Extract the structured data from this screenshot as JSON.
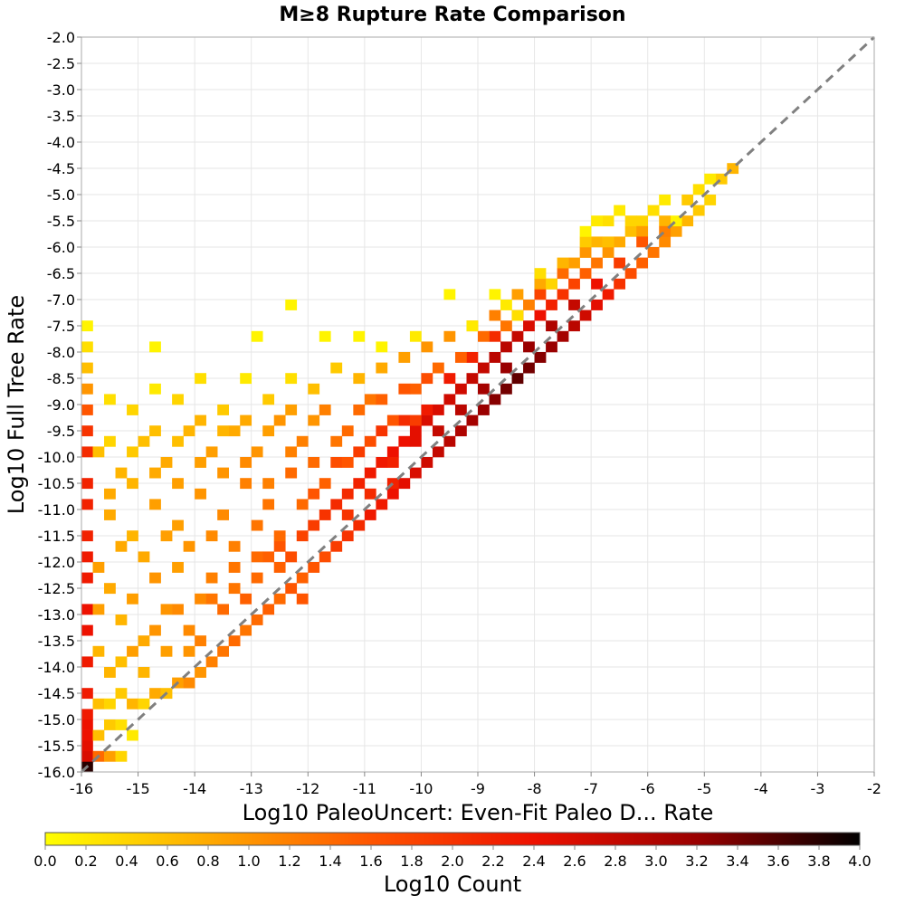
{
  "chart_data": {
    "type": "heatmap",
    "title": "M≥8 Rupture Rate Comparison",
    "xlabel": "Log10 PaleoUncert: Even-Fit Paleo D... Rate",
    "ylabel": "Log10 Full Tree Rate",
    "xlim": [
      -16,
      -2
    ],
    "ylim": [
      -16,
      -2
    ],
    "x_ticks": [
      -16,
      -15,
      -14,
      -13,
      -12,
      -11,
      -10,
      -9,
      -8,
      -7,
      -6,
      -5,
      -4,
      -3,
      -2
    ],
    "x_tick_labels": [
      "-16",
      "-15",
      "-14",
      "-13",
      "-12",
      "-11",
      "-10",
      "-9",
      "-8",
      "-7",
      "-6",
      "-5",
      "-4",
      "-3",
      "-2"
    ],
    "y_ticks": [
      -16,
      -15.5,
      -15,
      -14.5,
      -14,
      -13.5,
      -13,
      -12.5,
      -12,
      -11.5,
      -11,
      -10.5,
      -10,
      -9.5,
      -9,
      -8.5,
      -8,
      -7.5,
      -7,
      -6.5,
      -6,
      -5.5,
      -5,
      -4.5,
      -4,
      -3.5,
      -3,
      -2.5,
      -2
    ],
    "y_tick_labels": [
      "-16.0",
      "-15.5",
      "-15.0",
      "-14.5",
      "-14.0",
      "-13.5",
      "-13.0",
      "-12.5",
      "-12.0",
      "-11.5",
      "-11.0",
      "-10.5",
      "-10.0",
      "-9.5",
      "-9.0",
      "-8.5",
      "-8.0",
      "-7.5",
      "-7.0",
      "-6.5",
      "-6.0",
      "-5.5",
      "-5.0",
      "-4.5",
      "-4.0",
      "-3.5",
      "-3.0",
      "-2.5",
      "-2.0"
    ],
    "grid": true,
    "bin_size": 0.2,
    "reference_line": {
      "from": [
        -16,
        -16
      ],
      "to": [
        -2,
        -2
      ],
      "style": "dashed",
      "color": "#808080"
    },
    "colorbar": {
      "label": "Log10 Count",
      "range": [
        0,
        4
      ],
      "ticks": [
        0.0,
        0.2,
        0.4,
        0.6,
        0.8,
        1.0,
        1.2,
        1.4,
        1.6,
        1.8,
        2.0,
        2.2,
        2.4,
        2.6,
        2.8,
        3.0,
        3.2,
        3.4,
        3.6,
        3.8,
        4.0
      ],
      "tick_labels": [
        "0.0",
        "0.2",
        "0.4",
        "0.6",
        "0.8",
        "1.0",
        "1.2",
        "1.4",
        "1.6",
        "1.8",
        "2.0",
        "2.2",
        "2.4",
        "2.6",
        "2.8",
        "3.0",
        "3.2",
        "3.4",
        "3.6",
        "3.8",
        "4.0"
      ],
      "colormap": [
        "#ffff00",
        "#ffaa00",
        "#ff5500",
        "#ee1100",
        "#9a0000",
        "#000000"
      ]
    },
    "cells": [
      [
        -16,
        -16,
        3.8
      ],
      [
        -16,
        -15.8,
        2.6
      ],
      [
        -16,
        -15.6,
        2.5
      ],
      [
        -16,
        -15.4,
        2.4
      ],
      [
        -16,
        -15.2,
        2.4
      ],
      [
        -16,
        -15,
        2.3
      ],
      [
        -16,
        -14.6,
        2.3
      ],
      [
        -16,
        -14,
        2.3
      ],
      [
        -16,
        -13.4,
        2.4
      ],
      [
        -16,
        -13,
        2.4
      ],
      [
        -16,
        -12.4,
        2.3
      ],
      [
        -16,
        -12,
        2.3
      ],
      [
        -16,
        -11.6,
        2.2
      ],
      [
        -16,
        -11,
        2.2
      ],
      [
        -16,
        -10.6,
        2.2
      ],
      [
        -16,
        -10,
        2.1
      ],
      [
        -16,
        -9.6,
        2.0
      ],
      [
        -16,
        -9.2,
        1.6
      ],
      [
        -16,
        -8.8,
        1.0
      ],
      [
        -16,
        -8.4,
        0.6
      ],
      [
        -16,
        -8,
        0.3
      ],
      [
        -16,
        -7.6,
        0.1
      ],
      [
        -15.8,
        -15.8,
        1.4
      ],
      [
        -15.6,
        -15.8,
        0.9
      ],
      [
        -15.4,
        -15.8,
        0.4
      ],
      [
        -15.8,
        -15.4,
        0.6
      ],
      [
        -15.6,
        -15.2,
        0.5
      ],
      [
        -15.4,
        -15.2,
        0.3
      ],
      [
        -15.2,
        -15.4,
        0.2
      ],
      [
        -15.8,
        -14.8,
        0.6
      ],
      [
        -15.6,
        -14.8,
        0.4
      ],
      [
        -15.4,
        -14.6,
        0.5
      ],
      [
        -15.2,
        -14.8,
        0.7
      ],
      [
        -15,
        -14.8,
        0.4
      ],
      [
        -14.8,
        -14.6,
        0.8
      ],
      [
        -14.6,
        -14.6,
        0.6
      ],
      [
        -14.4,
        -14.4,
        0.9
      ],
      [
        -14.2,
        -14.4,
        1.1
      ],
      [
        -14,
        -14.2,
        1.0
      ],
      [
        -13.8,
        -14,
        1.2
      ],
      [
        -13.6,
        -13.8,
        1.3
      ],
      [
        -13.4,
        -13.6,
        1.4
      ],
      [
        -13.2,
        -13.4,
        1.3
      ],
      [
        -13,
        -13.2,
        1.4
      ],
      [
        -12.8,
        -13,
        1.5
      ],
      [
        -12.6,
        -12.8,
        1.4
      ],
      [
        -12.4,
        -12.6,
        1.6
      ],
      [
        -12.2,
        -12.4,
        1.5
      ],
      [
        -12,
        -12.2,
        1.6
      ],
      [
        -11.8,
        -12,
        1.7
      ],
      [
        -11.6,
        -11.8,
        1.9
      ],
      [
        -11.4,
        -11.6,
        2.0
      ],
      [
        -11.2,
        -11.4,
        2.1
      ],
      [
        -11,
        -11.2,
        2.3
      ],
      [
        -10.8,
        -11,
        2.3
      ],
      [
        -10.6,
        -10.8,
        2.4
      ],
      [
        -10.4,
        -10.6,
        2.5
      ],
      [
        -10.2,
        -10.4,
        2.6
      ],
      [
        -10,
        -10.2,
        2.7
      ],
      [
        -9.8,
        -10,
        2.8
      ],
      [
        -9.6,
        -9.8,
        2.9
      ],
      [
        -9.4,
        -9.6,
        3.0
      ],
      [
        -9.2,
        -9.4,
        3.1
      ],
      [
        -9,
        -9.2,
        3.2
      ],
      [
        -8.8,
        -9,
        3.3
      ],
      [
        -8.6,
        -8.8,
        3.4
      ],
      [
        -8.4,
        -8.6,
        3.5
      ],
      [
        -8.2,
        -8.4,
        3.4
      ],
      [
        -8,
        -8.2,
        3.3
      ],
      [
        -7.8,
        -8,
        3.2
      ],
      [
        -7.6,
        -7.8,
        3.1
      ],
      [
        -7.4,
        -7.6,
        2.9
      ],
      [
        -7.2,
        -7.4,
        2.7
      ],
      [
        -7,
        -7.2,
        2.5
      ],
      [
        -6.8,
        -7,
        2.3
      ],
      [
        -6.6,
        -6.8,
        2.0
      ],
      [
        -6.4,
        -6.6,
        1.7
      ],
      [
        -6.2,
        -6.4,
        1.5
      ],
      [
        -6,
        -6.2,
        1.3
      ],
      [
        -5.8,
        -6,
        1.1
      ],
      [
        -5.6,
        -5.8,
        0.9
      ],
      [
        -5.4,
        -5.6,
        0.7
      ],
      [
        -5.2,
        -5.4,
        0.5
      ],
      [
        -5,
        -5.2,
        0.4
      ],
      [
        -4.8,
        -4.8,
        0.5
      ],
      [
        -4.6,
        -4.6,
        0.7
      ],
      [
        -15.8,
        -13,
        0.9
      ],
      [
        -15.6,
        -12.6,
        0.8
      ],
      [
        -15.4,
        -13.2,
        0.7
      ],
      [
        -15.2,
        -12.8,
        0.9
      ],
      [
        -15,
        -13.6,
        0.8
      ],
      [
        -14.8,
        -12.4,
        1.0
      ],
      [
        -14.6,
        -13,
        1.0
      ],
      [
        -14.4,
        -12.2,
        0.9
      ],
      [
        -14.2,
        -13.4,
        1.1
      ],
      [
        -14,
        -12.8,
        1.1
      ],
      [
        -13.8,
        -12.4,
        1.2
      ],
      [
        -13.6,
        -13,
        1.4
      ],
      [
        -13.4,
        -12.2,
        1.3
      ],
      [
        -13.2,
        -12.8,
        1.5
      ],
      [
        -13,
        -12.4,
        1.4
      ],
      [
        -12.8,
        -12,
        1.5
      ],
      [
        -12.6,
        -11.8,
        1.6
      ],
      [
        -12.4,
        -12,
        1.7
      ],
      [
        -12.2,
        -11.6,
        1.8
      ],
      [
        -12,
        -11.4,
        1.9
      ],
      [
        -11.8,
        -11.2,
        2.0
      ],
      [
        -11.6,
        -11,
        2.1
      ],
      [
        -11.4,
        -10.8,
        2.1
      ],
      [
        -11.2,
        -10.6,
        2.2
      ],
      [
        -11,
        -10.4,
        2.3
      ],
      [
        -10.8,
        -10.2,
        2.3
      ],
      [
        -10.6,
        -10,
        2.4
      ],
      [
        -10.4,
        -9.8,
        2.4
      ],
      [
        -10.2,
        -9.6,
        2.5
      ],
      [
        -10,
        -9.4,
        2.6
      ],
      [
        -9.8,
        -9.2,
        2.6
      ],
      [
        -9.6,
        -9,
        2.7
      ],
      [
        -9.4,
        -8.8,
        2.7
      ],
      [
        -9.2,
        -8.6,
        2.8
      ],
      [
        -9,
        -8.4,
        2.8
      ],
      [
        -8.8,
        -8.2,
        2.9
      ],
      [
        -8.6,
        -8,
        2.9
      ],
      [
        -8.4,
        -7.8,
        2.8
      ],
      [
        -8.2,
        -7.6,
        2.6
      ],
      [
        -8,
        -7.4,
        2.4
      ],
      [
        -7.8,
        -7.2,
        2.2
      ],
      [
        -7.6,
        -7,
        2.0
      ],
      [
        -7.4,
        -6.8,
        1.8
      ],
      [
        -7.2,
        -6.6,
        1.5
      ],
      [
        -7,
        -6.4,
        1.3
      ],
      [
        -6.8,
        -6.2,
        1.0
      ],
      [
        -6.6,
        -6,
        0.8
      ],
      [
        -6.4,
        -5.8,
        0.6
      ],
      [
        -6.2,
        -5.6,
        0.4
      ],
      [
        -15.6,
        -11.2,
        0.8
      ],
      [
        -15.2,
        -11.6,
        0.7
      ],
      [
        -14.8,
        -11,
        0.9
      ],
      [
        -14.4,
        -11.4,
        0.9
      ],
      [
        -14,
        -10.8,
        1.0
      ],
      [
        -13.6,
        -11.2,
        1.1
      ],
      [
        -13.2,
        -10.6,
        1.2
      ],
      [
        -12.8,
        -11,
        1.3
      ],
      [
        -12.4,
        -10.4,
        1.4
      ],
      [
        -12,
        -10.8,
        1.6
      ],
      [
        -11.6,
        -10.2,
        1.7
      ],
      [
        -11.2,
        -10,
        1.9
      ],
      [
        -10.8,
        -9.6,
        2.0
      ],
      [
        -10.4,
        -9.4,
        2.1
      ],
      [
        -10,
        -9.2,
        2.3
      ],
      [
        -9.6,
        -8.6,
        2.3
      ],
      [
        -9.2,
        -8.2,
        2.2
      ],
      [
        -8.8,
        -7.8,
        2.1
      ],
      [
        -8.4,
        -7.4,
        2.0
      ],
      [
        -8,
        -7,
        1.8
      ],
      [
        -7.6,
        -6.6,
        1.4
      ],
      [
        -7.2,
        -6.2,
        1.0
      ],
      [
        -15.8,
        -10,
        0.6
      ],
      [
        -15.4,
        -10.4,
        0.7
      ],
      [
        -15,
        -9.8,
        0.6
      ],
      [
        -14.6,
        -10.2,
        0.8
      ],
      [
        -14.2,
        -9.6,
        0.7
      ],
      [
        -13.8,
        -10,
        0.9
      ],
      [
        -13.4,
        -9.6,
        0.8
      ],
      [
        -13,
        -10,
        1.0
      ],
      [
        -12.6,
        -9.4,
        1.0
      ],
      [
        -12.2,
        -9.8,
        1.2
      ],
      [
        -11.8,
        -9.2,
        1.2
      ],
      [
        -11.4,
        -9.6,
        1.4
      ],
      [
        -11,
        -9,
        1.3
      ],
      [
        -10.6,
        -9.4,
        1.6
      ],
      [
        -10.2,
        -8.8,
        1.5
      ],
      [
        -9.8,
        -8.4,
        1.4
      ],
      [
        -9.4,
        -8.2,
        1.5
      ],
      [
        -9,
        -7.8,
        1.4
      ],
      [
        -8.6,
        -7.6,
        1.3
      ],
      [
        -8.2,
        -7.2,
        1.2
      ],
      [
        -7.8,
        -6.8,
        1.1
      ],
      [
        -7.4,
        -6.4,
        0.9
      ],
      [
        -7,
        -6,
        0.7
      ],
      [
        -15.6,
        -9,
        0.3
      ],
      [
        -15.2,
        -9.2,
        0.4
      ],
      [
        -14.8,
        -8.8,
        0.2
      ],
      [
        -14.4,
        -9,
        0.4
      ],
      [
        -14,
        -8.6,
        0.3
      ],
      [
        -13.6,
        -9.2,
        0.5
      ],
      [
        -13.2,
        -8.6,
        0.2
      ],
      [
        -12.8,
        -9,
        0.5
      ],
      [
        -12.4,
        -8.6,
        0.3
      ],
      [
        -12,
        -8.8,
        0.6
      ],
      [
        -11.6,
        -8.4,
        0.5
      ],
      [
        -11.2,
        -8.6,
        0.7
      ],
      [
        -10.8,
        -8.4,
        0.8
      ],
      [
        -10.4,
        -8.2,
        0.9
      ],
      [
        -10,
        -8,
        1.0
      ],
      [
        -9.6,
        -7.8,
        1.0
      ],
      [
        -9.2,
        -7.6,
        1.1
      ],
      [
        -8.8,
        -7.4,
        1.2
      ],
      [
        -8.4,
        -7,
        0.9
      ],
      [
        -8,
        -6.8,
        0.8
      ],
      [
        -7.6,
        -6.4,
        0.7
      ],
      [
        -7.2,
        -6,
        0.5
      ],
      [
        -6.8,
        -5.6,
        0.3
      ],
      [
        -14.8,
        -8,
        0.1
      ],
      [
        -13,
        -7.8,
        0.1
      ],
      [
        -12.4,
        -7.2,
        0.1
      ],
      [
        -11.8,
        -7.8,
        0.1
      ],
      [
        -11.2,
        -7.8,
        0.1
      ],
      [
        -10.8,
        -8,
        0.1
      ],
      [
        -10.2,
        -7.8,
        0.2
      ],
      [
        -9.6,
        -7,
        0.1
      ],
      [
        -9.2,
        -7.6,
        0.2
      ],
      [
        -8.8,
        -7,
        0.1
      ],
      [
        -8.6,
        -7.2,
        0.2
      ],
      [
        -8.4,
        -7.4,
        0.3
      ],
      [
        -8,
        -6.6,
        0.3
      ],
      [
        -7.8,
        -6.8,
        0.4
      ],
      [
        -7.2,
        -5.8,
        0.1
      ],
      [
        -7,
        -5.6,
        0.2
      ],
      [
        -6.6,
        -5.4,
        0.2
      ],
      [
        -6.4,
        -5.6,
        0.4
      ],
      [
        -6,
        -5.4,
        0.3
      ],
      [
        -5.8,
        -5.2,
        0.2
      ],
      [
        -5.6,
        -5.6,
        0.1
      ],
      [
        -6.8,
        -6,
        0.6
      ],
      [
        -6.2,
        -5.8,
        0.9
      ],
      [
        -5.8,
        -5.6,
        0.7
      ],
      [
        -5.4,
        -5.2,
        0.5
      ],
      [
        -5.2,
        -5,
        0.3
      ],
      [
        -5,
        -4.8,
        0.2
      ],
      [
        -15.8,
        -13.8,
        0.7
      ],
      [
        -15.4,
        -14,
        0.6
      ],
      [
        -15,
        -14.2,
        0.7
      ],
      [
        -14.6,
        -13.8,
        0.9
      ],
      [
        -14.2,
        -13.8,
        1.0
      ],
      [
        -15.8,
        -12.2,
        0.9
      ],
      [
        -15.4,
        -11.8,
        0.8
      ],
      [
        -15,
        -12,
        0.8
      ],
      [
        -14.6,
        -11.6,
        0.9
      ],
      [
        -14.2,
        -11.8,
        1.0
      ],
      [
        -13.8,
        -11.6,
        1.1
      ],
      [
        -13.4,
        -11.8,
        1.2
      ],
      [
        -13,
        -11.4,
        1.3
      ],
      [
        -12.6,
        -11.6,
        1.4
      ],
      [
        -12.2,
        -11,
        1.4
      ],
      [
        -11.8,
        -10.6,
        1.5
      ],
      [
        -11.4,
        -10.2,
        1.6
      ],
      [
        -11,
        -9.8,
        1.7
      ],
      [
        -10.6,
        -10.6,
        2.2
      ],
      [
        -10.2,
        -9.4,
        1.9
      ],
      [
        -15.6,
        -10.8,
        0.8
      ],
      [
        -15.2,
        -10.6,
        0.7
      ],
      [
        -14.8,
        -10.4,
        0.8
      ],
      [
        -14.4,
        -10.6,
        0.9
      ],
      [
        -14,
        -10.2,
        0.9
      ],
      [
        -13.6,
        -10.4,
        1.0
      ],
      [
        -13.2,
        -10.2,
        1.1
      ],
      [
        -12.8,
        -10.6,
        1.2
      ],
      [
        -12.4,
        -10,
        1.2
      ],
      [
        -12,
        -10.2,
        1.4
      ],
      [
        -15.6,
        -9.8,
        0.4
      ],
      [
        -15.2,
        -10,
        0.5
      ],
      [
        -14.8,
        -9.6,
        0.6
      ],
      [
        -14.4,
        -9.8,
        0.6
      ],
      [
        -14,
        -9.4,
        0.7
      ],
      [
        -13.6,
        -9.6,
        0.7
      ],
      [
        -13.2,
        -9.4,
        0.8
      ],
      [
        -12.8,
        -9.6,
        0.9
      ],
      [
        -12.4,
        -9.2,
        0.9
      ],
      [
        -12,
        -9.4,
        1.0
      ],
      [
        -11.6,
        -9.8,
        1.3
      ],
      [
        -11.2,
        -9.2,
        1.4
      ],
      [
        -10.8,
        -9,
        1.5
      ],
      [
        -10.4,
        -8.8,
        1.6
      ],
      [
        -10,
        -8.6,
        1.7
      ],
      [
        -13.8,
        -12.8,
        1.3
      ],
      [
        -13.4,
        -12.6,
        1.3
      ],
      [
        -13,
        -12,
        1.4
      ],
      [
        -12.6,
        -12.2,
        1.5
      ],
      [
        -12.2,
        -12.8,
        1.6
      ],
      [
        -14.8,
        -13.4,
        1.0
      ],
      [
        -14.4,
        -13,
        1.1
      ],
      [
        -14,
        -13.6,
        1.2
      ],
      [
        -15.2,
        -13.8,
        0.9
      ],
      [
        -15.6,
        -14.2,
        0.7
      ],
      [
        -11.4,
        -11.2,
        2.0
      ],
      [
        -11,
        -10.8,
        2.1
      ],
      [
        -10.6,
        -10.2,
        2.2
      ],
      [
        -10.2,
        -9.8,
        2.5
      ],
      [
        -9.8,
        -9.6,
        2.8
      ],
      [
        -9.4,
        -9.2,
        2.9
      ],
      [
        -9,
        -8.8,
        3.1
      ],
      [
        -8.6,
        -8.4,
        3.2
      ],
      [
        -8.2,
        -8,
        3.2
      ],
      [
        -7.8,
        -7.6,
        3.0
      ],
      [
        -7.4,
        -7.2,
        2.8
      ],
      [
        -7,
        -6.8,
        2.4
      ],
      [
        -6.6,
        -6.4,
        1.9
      ],
      [
        -6.2,
        -6,
        1.6
      ],
      [
        -5.8,
        -5.8,
        1.2
      ]
    ]
  }
}
